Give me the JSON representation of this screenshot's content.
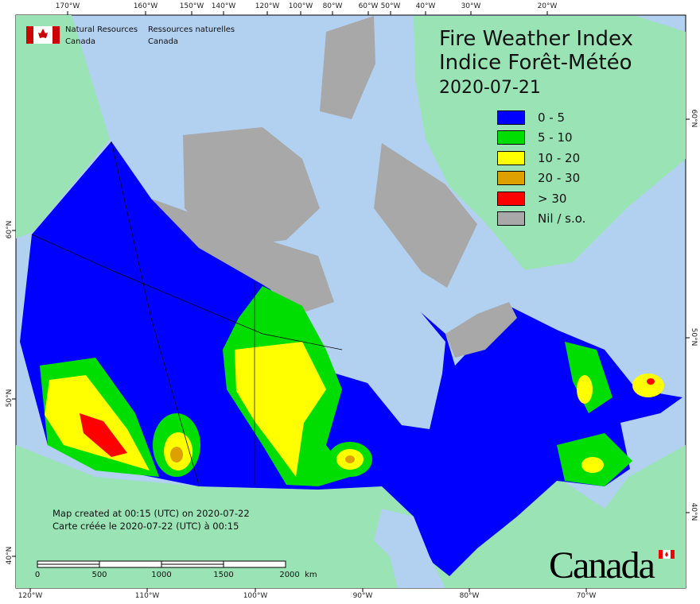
{
  "colors": {
    "ocean": "#b2d0f0",
    "land": "#99e3b5",
    "nil": "#a8a8a8",
    "c0_5": "#0000ff",
    "c5_10": "#00dd00",
    "c10_20": "#ffff00",
    "c20_30": "#dda000",
    "c30": "#ff0000"
  },
  "agency": {
    "en_line1": "Natural Resources",
    "en_line2": "Canada",
    "fr_line1": "Ressources naturelles",
    "fr_line2": "Canada",
    "flag_icon": "canada-flag-icon"
  },
  "title": {
    "en": "Fire Weather Index",
    "fr": "Indice Forêt-Météo",
    "date": "2020-07-21"
  },
  "legend": [
    {
      "label": "0 - 5",
      "color": "#0000ff"
    },
    {
      "label": "5 - 10",
      "color": "#00dd00"
    },
    {
      "label": "10 - 20",
      "color": "#ffff00"
    },
    {
      "label": "20 - 30",
      "color": "#dda000"
    },
    {
      "label": "> 30",
      "color": "#ff0000"
    },
    {
      "label": "Nil / s.o.",
      "color": "#a8a8a8"
    }
  ],
  "axes": {
    "top": [
      "170°W",
      "160°W",
      "150°W",
      "140°W",
      "120°W",
      "100°W",
      "80°W",
      "60°W",
      "50°W",
      "40°W",
      "30°W",
      "20°W"
    ],
    "bottom": [
      "120°W",
      "110°W",
      "100°W",
      "90°W",
      "80°W",
      "70°W"
    ],
    "left": [
      "60°N",
      "50°N",
      "40°N"
    ],
    "right": [
      "60°N",
      "50°N",
      "40°N"
    ]
  },
  "note": {
    "en": "Map created at 00:15 (UTC) on 2020-07-22",
    "fr": "Carte créée le 2020-07-22 (UTC) à 00:15"
  },
  "scale": {
    "labels": [
      "0",
      "500",
      "1000",
      "1500",
      "2000  km"
    ]
  },
  "wordmark": "Canada"
}
